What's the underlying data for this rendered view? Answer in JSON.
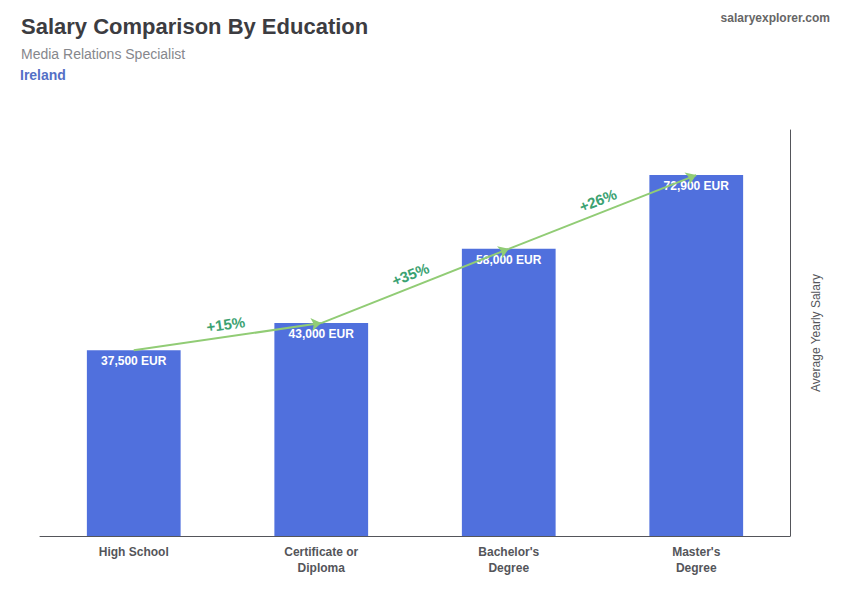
{
  "chart_data": {
    "type": "bar",
    "title": "Salary Comparison By Education",
    "subtitle": "Media Relations Specialist",
    "categories": [
      "High School",
      "Certificate or\nDiploma",
      "Bachelor's\nDegree",
      "Master's\nDegree"
    ],
    "values": [
      37500,
      43000,
      58000,
      72900
    ],
    "value_labels": [
      "37,500 EUR",
      "43,000 EUR",
      "58,000 EUR",
      "72,900 EUR"
    ],
    "ylabel": "Average Yearly Salary",
    "ylim": [
      0,
      82000
    ],
    "data_labels": true,
    "tick_labels": "x",
    "grid": false,
    "annotations": [
      {
        "text": "Ireland"
      },
      {
        "text": "salaryexplorer.com"
      },
      {
        "text": "+15%",
        "from": 0,
        "to": 1
      },
      {
        "text": "+35%",
        "from": 1,
        "to": 2
      },
      {
        "text": "+26%",
        "from": 2,
        "to": 3
      }
    ]
  }
}
